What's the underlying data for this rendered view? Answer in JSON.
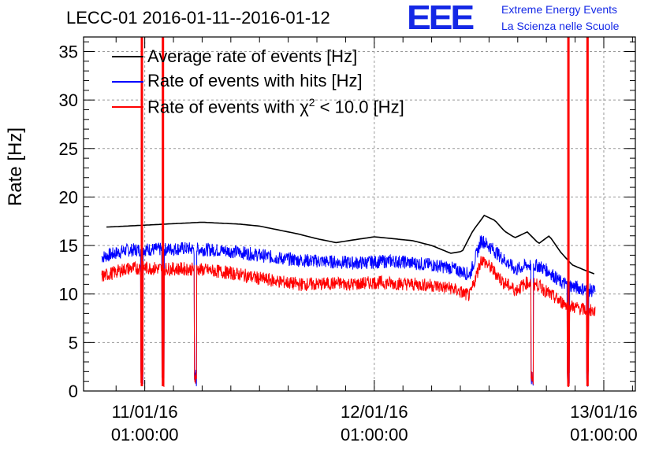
{
  "title": "LECC-01 2016-01-11--2016-01-12",
  "logo": {
    "mark": "EEE",
    "line1": "Extreme Energy Events",
    "line2": "La Scienza nelle Scuole",
    "color": "#1428e6"
  },
  "chart_data": {
    "type": "line",
    "title": "LECC-01 2016-01-11--2016-01-12",
    "xlabel": "",
    "ylabel": "Rate [Hz]",
    "ylim": [
      0,
      36.5
    ],
    "yticks": [
      0,
      5,
      10,
      15,
      20,
      25,
      30,
      35
    ],
    "x_unit": "hours since 11/01/16 01:00:00",
    "xlim": [
      -6.4,
      51.3
    ],
    "xticks": [
      {
        "x": 0,
        "label_date": "11/01/16",
        "label_time": "01:00:00"
      },
      {
        "x": 24,
        "label_date": "12/01/16",
        "label_time": "01:00:00"
      },
      {
        "x": 48,
        "label_date": "13/01/16",
        "label_time": "01:00:00"
      }
    ],
    "grid": true,
    "legend_position": "top-left",
    "series": [
      {
        "name": "Average rate of events [Hz]",
        "color": "#000000",
        "x": [
          -4.0,
          -2.0,
          0.0,
          2.0,
          4.0,
          6.0,
          8.0,
          10.0,
          12.0,
          14.0,
          16.0,
          18.0,
          20.0,
          22.0,
          24.0,
          26.0,
          28.0,
          30.0,
          32.0,
          33.2,
          34.3,
          35.5,
          36.6,
          37.6,
          38.7,
          40.0,
          41.2,
          42.3,
          43.5,
          44.7,
          45.9,
          47.2,
          48.2,
          49.5,
          50.6,
          51.3
        ],
        "values": [
          16.9,
          17.0,
          17.1,
          17.2,
          17.3,
          17.4,
          17.3,
          17.2,
          17.0,
          16.6,
          16.2,
          15.7,
          15.3,
          15.6,
          15.9,
          15.7,
          15.5,
          15.0,
          14.2,
          14.4,
          16.5,
          18.1,
          17.6,
          16.5,
          15.8,
          16.4,
          15.2,
          16.0,
          14.3,
          13.0,
          12.5,
          12.0,
          12.9,
          13.6,
          13.4,
          13.6
        ],
        "display_x_end": 47.2
      },
      {
        "name": "Rate of events with hits [Hz]",
        "color": "#0000ff",
        "x": [
          -4.5,
          -2.0,
          0.0,
          2.0,
          4.0,
          6.0,
          8.0,
          10.0,
          12.0,
          14.0,
          16.0,
          18.0,
          20.0,
          22.0,
          24.0,
          26.0,
          28.0,
          30.0,
          32.0,
          34.0,
          35.2,
          36.3,
          37.5,
          38.8,
          40.0,
          41.2,
          42.3,
          43.5,
          44.7,
          45.9,
          47.0,
          48.0,
          49.5,
          50.6
        ],
        "values": [
          13.8,
          14.5,
          14.6,
          14.6,
          14.7,
          14.6,
          14.5,
          14.3,
          14.0,
          13.7,
          13.5,
          13.4,
          13.3,
          13.2,
          13.3,
          13.4,
          13.2,
          13.0,
          12.7,
          12.0,
          15.6,
          14.7,
          13.6,
          12.5,
          13.0,
          12.9,
          12.3,
          11.2,
          10.8,
          10.5,
          10.3,
          10.1,
          10.2,
          10.0
        ],
        "display_x_end": 47.1
      },
      {
        "name": "Rate of events with χ² < 10.0 [Hz]",
        "color": "#ff0000",
        "x": [
          -4.5,
          -2.0,
          0.0,
          2.0,
          4.0,
          6.0,
          8.0,
          10.0,
          12.0,
          14.0,
          16.0,
          18.0,
          20.0,
          22.0,
          24.0,
          26.0,
          28.0,
          30.0,
          32.0,
          34.0,
          35.2,
          36.3,
          37.5,
          38.8,
          40.0,
          41.2,
          42.3,
          43.5,
          44.7,
          45.9,
          47.0,
          48.0,
          49.5,
          50.6
        ],
        "values": [
          11.8,
          12.6,
          12.7,
          12.6,
          12.6,
          12.5,
          12.3,
          12.0,
          11.6,
          11.3,
          11.0,
          11.0,
          11.1,
          11.0,
          11.2,
          11.1,
          11.0,
          10.9,
          10.6,
          9.8,
          13.6,
          12.6,
          11.2,
          10.4,
          11.2,
          10.9,
          10.0,
          9.2,
          8.7,
          8.4,
          8.2,
          8.2,
          8.2,
          8.1
        ],
        "display_x_end": 47.1
      }
    ],
    "dropouts": [
      {
        "x": -0.3,
        "spike_high": true
      },
      {
        "x": 1.9,
        "spike_high": true
      },
      {
        "x": 5.3,
        "spike_high": false
      },
      {
        "x": 40.5,
        "spike_high": false
      },
      {
        "x": 44.3,
        "spike_high": true
      },
      {
        "x": 46.3,
        "spike_high": true
      }
    ]
  },
  "legend": [
    {
      "label": "Average rate of events [Hz]",
      "color": "#000000"
    },
    {
      "label": "Rate of events with hits [Hz]",
      "color": "#0000ff"
    },
    {
      "label_prefix": "Rate of events with χ",
      "label_sup": "2",
      "label_suffix": " < 10.0 [Hz]",
      "color": "#ff0000"
    }
  ]
}
